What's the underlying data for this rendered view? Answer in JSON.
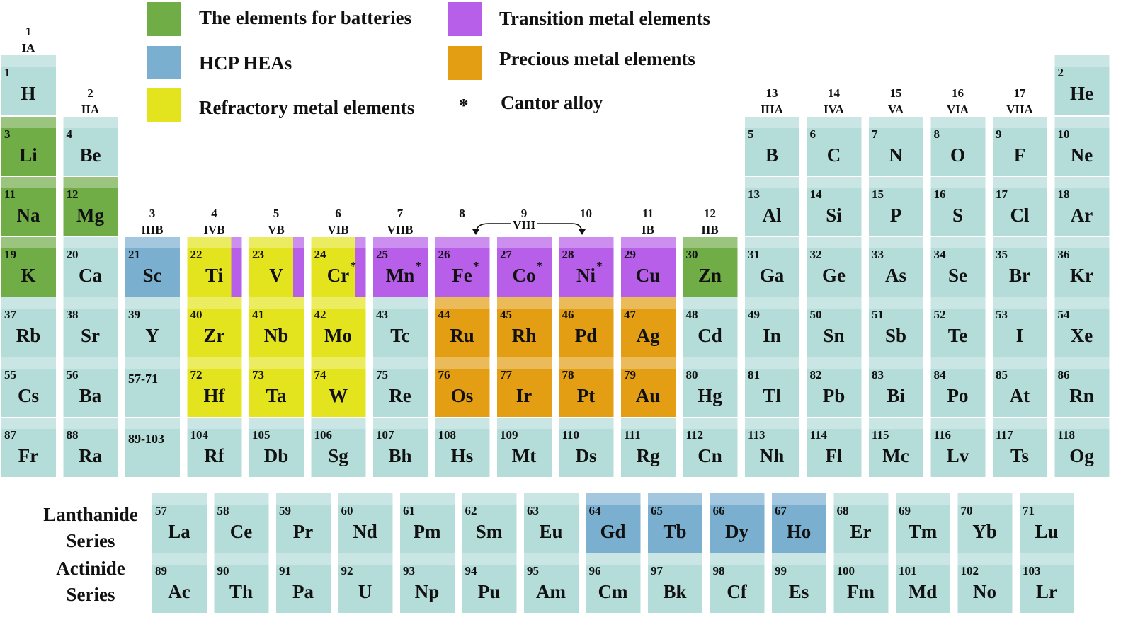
{
  "title_legend": [
    {
      "label": "The elements for batteries",
      "color": "#70ad47"
    },
    {
      "label": "HCP HEAs",
      "color": "#7bafd0"
    },
    {
      "label": "Refractory metal elements",
      "color": "#e4e41e"
    },
    {
      "label": "Transition metal elements",
      "color": "#b75fe8"
    },
    {
      "label": "Precious metal elements",
      "color": "#e39e14"
    }
  ],
  "cantor": {
    "symbol": "*",
    "label": "Cantor alloy"
  },
  "cell_color": "#b4dcd9",
  "groups": [
    {
      "number": "1",
      "label": "IA"
    },
    {
      "number": "2",
      "label": "IIA"
    },
    {
      "number": "3",
      "label": "IIIB"
    },
    {
      "number": "4",
      "label": "IVB"
    },
    {
      "number": "5",
      "label": "VB"
    },
    {
      "number": "6",
      "label": "VIB"
    },
    {
      "number": "7",
      "label": "VIIB"
    },
    {
      "number": "8"
    },
    {
      "number": "9",
      "label": "VIII"
    },
    {
      "number": "10"
    },
    {
      "number": "11",
      "label": "IB"
    },
    {
      "number": "12",
      "label": "IIB"
    },
    {
      "number": "13",
      "label": "IIIA"
    },
    {
      "number": "14",
      "label": "IVA"
    },
    {
      "number": "15",
      "label": "VA"
    },
    {
      "number": "16",
      "label": "VIA"
    },
    {
      "number": "17",
      "label": "VIIA"
    }
  ],
  "placeholders": [
    "57-71",
    "89-103"
  ],
  "series_labels": [
    [
      "Lanthanide",
      "Series"
    ],
    [
      "Actinide",
      "Series"
    ]
  ],
  "elements": [
    {
      "n": 1,
      "s": "H"
    },
    {
      "n": 2,
      "s": "He"
    },
    {
      "n": 3,
      "s": "Li",
      "c": "#70ad47"
    },
    {
      "n": 4,
      "s": "Be"
    },
    {
      "n": 5,
      "s": "B"
    },
    {
      "n": 6,
      "s": "C"
    },
    {
      "n": 7,
      "s": "N"
    },
    {
      "n": 8,
      "s": "O"
    },
    {
      "n": 9,
      "s": "F"
    },
    {
      "n": 10,
      "s": "Ne"
    },
    {
      "n": 11,
      "s": "Na",
      "c": "#70ad47"
    },
    {
      "n": 12,
      "s": "Mg",
      "c": "#70ad47"
    },
    {
      "n": 13,
      "s": "Al"
    },
    {
      "n": 14,
      "s": "Si"
    },
    {
      "n": 15,
      "s": "P"
    },
    {
      "n": 16,
      "s": "S"
    },
    {
      "n": 17,
      "s": "Cl"
    },
    {
      "n": 18,
      "s": "Ar"
    },
    {
      "n": 19,
      "s": "K",
      "c": "#70ad47"
    },
    {
      "n": 20,
      "s": "Ca"
    },
    {
      "n": 21,
      "s": "Sc",
      "c": "#7bafd0"
    },
    {
      "n": 22,
      "s": "Ti",
      "c": "#e4e41e",
      "stripe": "#b75fe8"
    },
    {
      "n": 23,
      "s": "V",
      "c": "#e4e41e",
      "stripe": "#b75fe8"
    },
    {
      "n": 24,
      "s": "Cr",
      "c": "#e4e41e",
      "stripe": "#b75fe8",
      "mark": "*"
    },
    {
      "n": 25,
      "s": "Mn",
      "c": "#b75fe8",
      "mark": "*"
    },
    {
      "n": 26,
      "s": "Fe",
      "c": "#b75fe8",
      "mark": "*"
    },
    {
      "n": 27,
      "s": "Co",
      "c": "#b75fe8",
      "mark": "*"
    },
    {
      "n": 28,
      "s": "Ni",
      "c": "#b75fe8",
      "mark": "*"
    },
    {
      "n": 29,
      "s": "Cu",
      "c": "#b75fe8"
    },
    {
      "n": 30,
      "s": "Zn",
      "c": "#70ad47"
    },
    {
      "n": 31,
      "s": "Ga"
    },
    {
      "n": 32,
      "s": "Ge"
    },
    {
      "n": 33,
      "s": "As"
    },
    {
      "n": 34,
      "s": "Se"
    },
    {
      "n": 35,
      "s": "Br"
    },
    {
      "n": 36,
      "s": "Kr"
    },
    {
      "n": 37,
      "s": "Rb"
    },
    {
      "n": 38,
      "s": "Sr"
    },
    {
      "n": 39,
      "s": "Y"
    },
    {
      "n": 40,
      "s": "Zr",
      "c": "#e4e41e"
    },
    {
      "n": 41,
      "s": "Nb",
      "c": "#e4e41e"
    },
    {
      "n": 42,
      "s": "Mo",
      "c": "#e4e41e"
    },
    {
      "n": 43,
      "s": "Tc"
    },
    {
      "n": 44,
      "s": "Ru",
      "c": "#e39e14"
    },
    {
      "n": 45,
      "s": "Rh",
      "c": "#e39e14"
    },
    {
      "n": 46,
      "s": "Pd",
      "c": "#e39e14"
    },
    {
      "n": 47,
      "s": "Ag",
      "c": "#e39e14"
    },
    {
      "n": 48,
      "s": "Cd"
    },
    {
      "n": 49,
      "s": "In"
    },
    {
      "n": 50,
      "s": "Sn"
    },
    {
      "n": 51,
      "s": "Sb"
    },
    {
      "n": 52,
      "s": "Te"
    },
    {
      "n": 53,
      "s": "I"
    },
    {
      "n": 54,
      "s": "Xe"
    },
    {
      "n": 55,
      "s": "Cs"
    },
    {
      "n": 56,
      "s": "Ba"
    },
    {
      "n": 57,
      "s": "La"
    },
    {
      "n": 58,
      "s": "Ce"
    },
    {
      "n": 59,
      "s": "Pr"
    },
    {
      "n": 60,
      "s": "Nd"
    },
    {
      "n": 61,
      "s": "Pm"
    },
    {
      "n": 62,
      "s": "Sm"
    },
    {
      "n": 63,
      "s": "Eu"
    },
    {
      "n": 64,
      "s": "Gd",
      "c": "#7bafd0"
    },
    {
      "n": 65,
      "s": "Tb",
      "c": "#7bafd0"
    },
    {
      "n": 66,
      "s": "Dy",
      "c": "#7bafd0"
    },
    {
      "n": 67,
      "s": "Ho",
      "c": "#7bafd0"
    },
    {
      "n": 68,
      "s": "Er"
    },
    {
      "n": 69,
      "s": "Tm"
    },
    {
      "n": 70,
      "s": "Yb"
    },
    {
      "n": 71,
      "s": "Lu"
    },
    {
      "n": 72,
      "s": "Hf",
      "c": "#e4e41e"
    },
    {
      "n": 73,
      "s": "Ta",
      "c": "#e4e41e"
    },
    {
      "n": 74,
      "s": "W",
      "c": "#e4e41e"
    },
    {
      "n": 75,
      "s": "Re"
    },
    {
      "n": 76,
      "s": "Os",
      "c": "#e39e14"
    },
    {
      "n": 77,
      "s": "Ir",
      "c": "#e39e14"
    },
    {
      "n": 78,
      "s": "Pt",
      "c": "#e39e14"
    },
    {
      "n": 79,
      "s": "Au",
      "c": "#e39e14"
    },
    {
      "n": 80,
      "s": "Hg"
    },
    {
      "n": 81,
      "s": "Tl"
    },
    {
      "n": 82,
      "s": "Pb"
    },
    {
      "n": 83,
      "s": "Bi"
    },
    {
      "n": 84,
      "s": "Po"
    },
    {
      "n": 85,
      "s": "At"
    },
    {
      "n": 86,
      "s": "Rn"
    },
    {
      "n": 87,
      "s": "Fr"
    },
    {
      "n": 88,
      "s": "Ra"
    },
    {
      "n": 89,
      "s": "Ac"
    },
    {
      "n": 90,
      "s": "Th"
    },
    {
      "n": 91,
      "s": "Pa"
    },
    {
      "n": 92,
      "s": "U"
    },
    {
      "n": 93,
      "s": "Np"
    },
    {
      "n": 94,
      "s": "Pu"
    },
    {
      "n": 95,
      "s": "Am"
    },
    {
      "n": 96,
      "s": "Cm"
    },
    {
      "n": 97,
      "s": "Bk"
    },
    {
      "n": 98,
      "s": "Cf"
    },
    {
      "n": 99,
      "s": "Es"
    },
    {
      "n": 100,
      "s": "Fm"
    },
    {
      "n": 101,
      "s": "Md"
    },
    {
      "n": 102,
      "s": "No"
    },
    {
      "n": 103,
      "s": "Lr"
    },
    {
      "n": 104,
      "s": "Rf"
    },
    {
      "n": 105,
      "s": "Db"
    },
    {
      "n": 106,
      "s": "Sg"
    },
    {
      "n": 107,
      "s": "Bh"
    },
    {
      "n": 108,
      "s": "Hs"
    },
    {
      "n": 109,
      "s": "Mt"
    },
    {
      "n": 110,
      "s": "Ds"
    },
    {
      "n": 111,
      "s": "Rg"
    },
    {
      "n": 112,
      "s": "Cn"
    },
    {
      "n": 113,
      "s": "Nh"
    },
    {
      "n": 114,
      "s": "Fl"
    },
    {
      "n": 115,
      "s": "Mc"
    },
    {
      "n": 116,
      "s": "Lv"
    },
    {
      "n": 117,
      "s": "Ts"
    },
    {
      "n": 118,
      "s": "Og"
    }
  ]
}
